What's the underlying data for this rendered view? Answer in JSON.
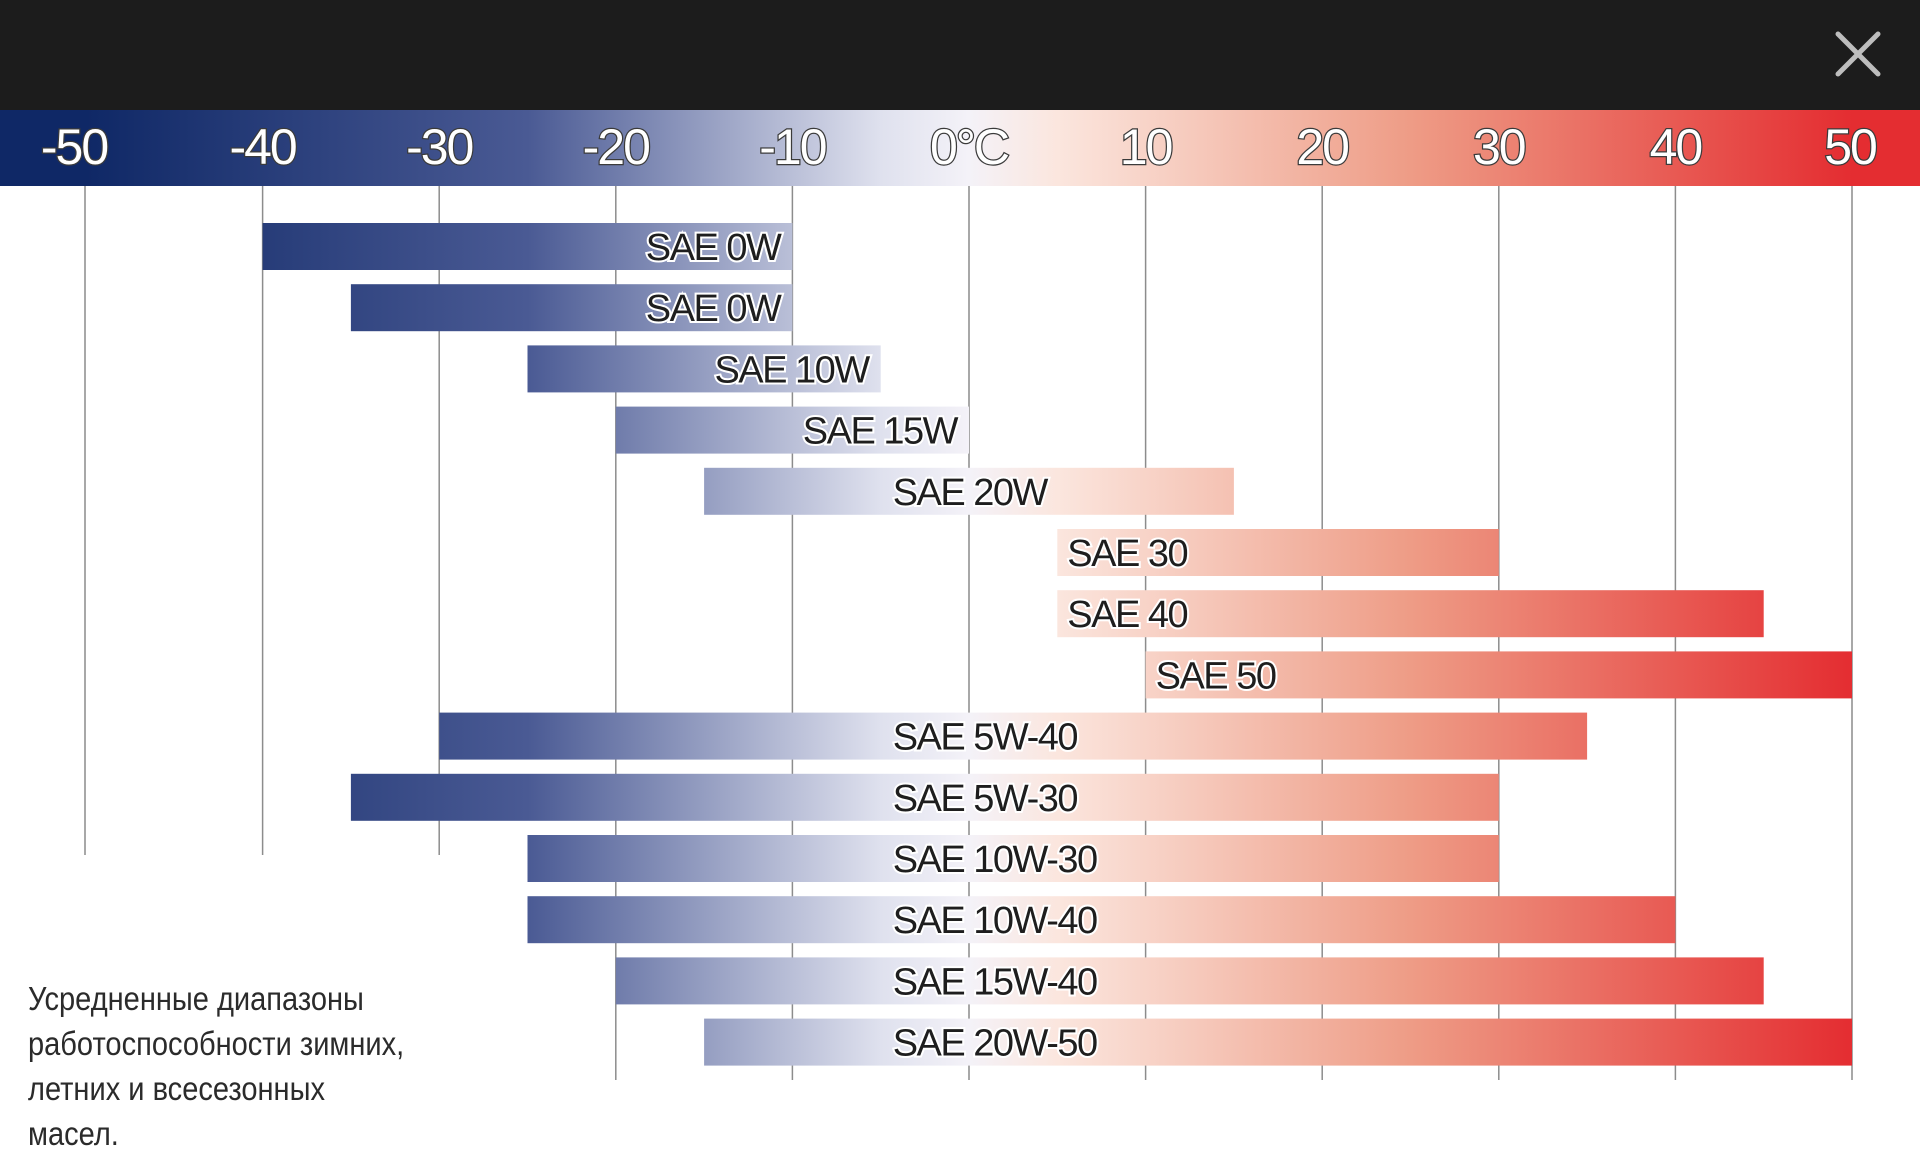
{
  "viewer": {
    "close_icon": "close-icon"
  },
  "colors": {
    "cold": "#0f2866",
    "neutral": "#f4f2f8",
    "hot": "#e42d31",
    "gridline": "#8c8c8c"
  },
  "chart_data": {
    "type": "range-bar",
    "xlim": [
      -50,
      50
    ],
    "x_ticks": [
      -50,
      -40,
      -30,
      -20,
      -10,
      0,
      10,
      20,
      30,
      40,
      50
    ],
    "x_tick_labels": [
      "-50",
      "-40",
      "-30",
      "-20",
      "-10",
      "0°C",
      "10",
      "20",
      "30",
      "40",
      "50"
    ],
    "grid": true,
    "caption": "Усредненные диапазоны работоспособности зимних, летних и всесезонных масел.",
    "bars": [
      {
        "label": "SAE 0W",
        "from": -40,
        "to": -10
      },
      {
        "label": "SAE 0W",
        "from": -35,
        "to": -10
      },
      {
        "label": "SAE 10W",
        "from": -25,
        "to": -5
      },
      {
        "label": "SAE 15W",
        "from": -20,
        "to": 0
      },
      {
        "label": "SAE 20W",
        "from": -15,
        "to": 15
      },
      {
        "label": "SAE 30",
        "from": 5,
        "to": 30
      },
      {
        "label": "SAE 40",
        "from": 5,
        "to": 45
      },
      {
        "label": "SAE 50",
        "from": 10,
        "to": 50
      },
      {
        "label": "SAE 5W-40",
        "from": -30,
        "to": 35
      },
      {
        "label": "SAE 5W-30",
        "from": -35,
        "to": 30
      },
      {
        "label": "SAE 10W-30",
        "from": -25,
        "to": 30
      },
      {
        "label": "SAE 10W-40",
        "from": -25,
        "to": 40
      },
      {
        "label": "SAE 15W-40",
        "from": -20,
        "to": 45
      },
      {
        "label": "SAE 20W-50",
        "from": -15,
        "to": 50
      }
    ]
  }
}
